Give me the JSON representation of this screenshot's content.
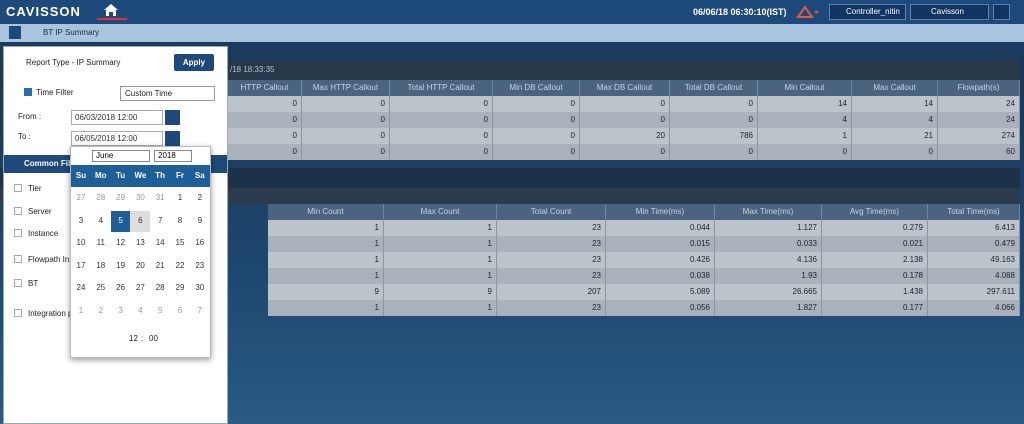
{
  "header": {
    "logo": "CAVISSON",
    "datetime": "06/06/18 06:30:10(IST)",
    "controller": "Controller_nitin",
    "user": "Cavisson"
  },
  "breadcrumb": "BT IP Summary",
  "table1": {
    "timestamp": "/18 18:33:35",
    "columns": [
      "HTTP Callout",
      "Max HTTP Callout",
      "Total HTTP Callout",
      "Min DB Callout",
      "Max DB Callout",
      "Total DB Callout",
      "Min Callout",
      "Max Callout",
      "Flowpath(s)"
    ],
    "rows": [
      [
        "0",
        "0",
        "0",
        "0",
        "0",
        "0",
        "14",
        "14",
        "24"
      ],
      [
        "0",
        "0",
        "0",
        "0",
        "0",
        "0",
        "4",
        "4",
        "24"
      ],
      [
        "0",
        "0",
        "0",
        "0",
        "20",
        "786",
        "1",
        "21",
        "274"
      ],
      [
        "0",
        "0",
        "0",
        "0",
        "0",
        "0",
        "0",
        "0",
        "60"
      ]
    ]
  },
  "table2": {
    "columns": [
      "Min Count",
      "Max Count",
      "Total Count",
      "Min Time(ms)",
      "Max Time(ms)",
      "Avg Time(ms)",
      "Total Time(ms)"
    ],
    "rows": [
      [
        "1",
        "1",
        "23",
        "0.044",
        "1.127",
        "0.279",
        "6.413"
      ],
      [
        "1",
        "1",
        "23",
        "0.015",
        "0.033",
        "0.021",
        "0.479"
      ],
      [
        "1",
        "1",
        "23",
        "0.426",
        "4.136",
        "2.138",
        "49.163"
      ],
      [
        "1",
        "1",
        "23",
        "0.038",
        "1.93",
        "0.178",
        "4.088"
      ],
      [
        "9",
        "9",
        "207",
        "5.089",
        "26.665",
        "1.438",
        "297.611"
      ],
      [
        "1",
        "1",
        "23",
        "0.056",
        "1.827",
        "0.177",
        "4.066"
      ]
    ]
  },
  "panel": {
    "report_type": "Report Type - IP Summary",
    "apply": "Apply",
    "time_filter": "Time Filter",
    "time_option": "Custom Time",
    "from_label": "From :",
    "from_value": "06/03/2018 12:00",
    "to_label": "To :",
    "to_value": "06/05/2018 12:00",
    "common_filters": "Common Filt",
    "filters": [
      "Tier",
      "Server",
      "Instance",
      "Flowpath In",
      "BT",
      "Integration p"
    ]
  },
  "calendar": {
    "month": "June",
    "year": "2018",
    "weekdays": [
      "Su",
      "Mo",
      "Tu",
      "We",
      "Th",
      "Fr",
      "Sa"
    ],
    "weeks": [
      [
        "27",
        "28",
        "29",
        "30",
        "31",
        "1",
        "2"
      ],
      [
        "3",
        "4",
        "5",
        "6",
        "7",
        "8",
        "9"
      ],
      [
        "10",
        "11",
        "12",
        "13",
        "14",
        "15",
        "16"
      ],
      [
        "17",
        "18",
        "19",
        "20",
        "21",
        "22",
        "23"
      ],
      [
        "24",
        "25",
        "26",
        "27",
        "28",
        "29",
        "30"
      ],
      [
        "1",
        "2",
        "3",
        "4",
        "5",
        "6",
        "7"
      ]
    ],
    "hour": "12",
    "separator": ":",
    "minute": "00"
  }
}
